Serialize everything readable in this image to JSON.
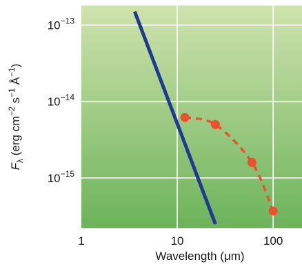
{
  "chart_data": {
    "type": "line",
    "title": "",
    "xlabel": "Wavelength (μm)",
    "ylabel": {
      "symbol": "F",
      "subscript": "λ",
      "unit_open": " (erg cm",
      "exp1": "−2",
      "unit_mid": " s",
      "exp2": "−1",
      "unit_angstrom": " Å",
      "exp3": "−1",
      "unit_close": ")"
    },
    "x_scale": "log",
    "y_scale": "log",
    "xlim": [
      1,
      200
    ],
    "ylim": [
      2.2e-16,
      1.8e-13
    ],
    "grid": true,
    "x_ticks": [
      {
        "value": 1,
        "label": "1"
      },
      {
        "value": 10,
        "label": "10"
      },
      {
        "value": 100,
        "label": "100"
      }
    ],
    "y_ticks": [
      {
        "value": 1e-13,
        "base": "10",
        "exp": "−13"
      },
      {
        "value": 1e-14,
        "base": "10",
        "exp": "−14"
      },
      {
        "value": 1e-15,
        "base": "10",
        "exp": "−15"
      }
    ],
    "series": [
      {
        "style": "solid-line",
        "color": "#1f3a8f",
        "x": [
          3.6,
          25
        ],
        "y": [
          1.5e-13,
          2.5e-16
        ]
      },
      {
        "style": "dashed-line-with-markers",
        "color": "#e8522f",
        "x": [
          12,
          25,
          60,
          100
        ],
        "y": [
          6.2e-15,
          5e-15,
          1.6e-15,
          3.7e-16
        ]
      }
    ],
    "colors": {
      "plot_bg_top": "#cfe3ad",
      "plot_bg_bottom": "#6cb35a",
      "grid": "#ffffff"
    }
  }
}
